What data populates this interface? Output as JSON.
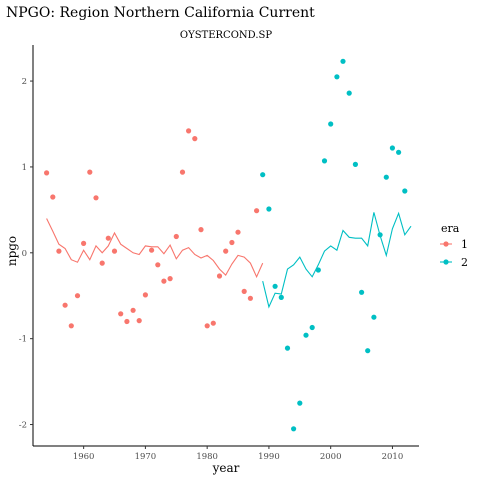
{
  "chart_data": {
    "type": "scatter",
    "title": "NPGO: Region Northern California Current",
    "subtitle": "OYSTERCOND.SP",
    "xlabel": "year",
    "ylabel": "npgo",
    "xlim": [
      1951.8,
      2014.3
    ],
    "ylim": [
      -2.25,
      2.42
    ],
    "x_ticks": [
      1960,
      1970,
      1980,
      1990,
      2000,
      2010
    ],
    "y_ticks": [
      -2,
      -1,
      0,
      1,
      2
    ],
    "grid": false,
    "legend_title": "era",
    "legend_position": "right",
    "series": [
      {
        "name": "1",
        "color": "#f8766d",
        "points": [
          [
            1954,
            0.93
          ],
          [
            1955,
            0.65
          ],
          [
            1956,
            0.02
          ],
          [
            1957,
            -0.61
          ],
          [
            1958,
            -0.85
          ],
          [
            1959,
            -0.5
          ],
          [
            1960,
            0.11
          ],
          [
            1961,
            0.94
          ],
          [
            1962,
            0.64
          ],
          [
            1963,
            -0.12
          ],
          [
            1964,
            0.17
          ],
          [
            1965,
            0.02
          ],
          [
            1966,
            -0.71
          ],
          [
            1967,
            -0.8
          ],
          [
            1968,
            -0.67
          ],
          [
            1969,
            -0.79
          ],
          [
            1970,
            -0.49
          ],
          [
            1971,
            0.03
          ],
          [
            1972,
            -0.14
          ],
          [
            1973,
            -0.33
          ],
          [
            1974,
            -0.3
          ],
          [
            1975,
            0.19
          ],
          [
            1976,
            0.94
          ],
          [
            1977,
            1.42
          ],
          [
            1978,
            1.33
          ],
          [
            1979,
            0.27
          ],
          [
            1980,
            -0.85
          ],
          [
            1981,
            -0.82
          ],
          [
            1982,
            -0.27
          ],
          [
            1983,
            0.02
          ],
          [
            1984,
            0.12
          ],
          [
            1985,
            0.24
          ],
          [
            1986,
            -0.45
          ],
          [
            1987,
            -0.53
          ],
          [
            1988,
            0.49
          ]
        ],
        "trend": [
          [
            1954,
            0.4
          ],
          [
            1955,
            0.25
          ],
          [
            1956,
            0.1
          ],
          [
            1957,
            0.05
          ],
          [
            1958,
            -0.08
          ],
          [
            1959,
            -0.11
          ],
          [
            1960,
            0.03
          ],
          [
            1961,
            -0.08
          ],
          [
            1962,
            0.08
          ],
          [
            1963,
            0.0
          ],
          [
            1964,
            0.08
          ],
          [
            1965,
            0.23
          ],
          [
            1966,
            0.1
          ],
          [
            1967,
            0.05
          ],
          [
            1968,
            0.0
          ],
          [
            1969,
            -0.02
          ],
          [
            1970,
            0.08
          ],
          [
            1971,
            0.07
          ],
          [
            1972,
            0.07
          ],
          [
            1973,
            -0.01
          ],
          [
            1974,
            0.09
          ],
          [
            1975,
            -0.07
          ],
          [
            1976,
            0.03
          ],
          [
            1977,
            0.06
          ],
          [
            1978,
            -0.02
          ],
          [
            1979,
            -0.06
          ],
          [
            1980,
            -0.03
          ],
          [
            1981,
            -0.09
          ],
          [
            1982,
            -0.19
          ],
          [
            1983,
            -0.26
          ],
          [
            1984,
            -0.13
          ],
          [
            1985,
            -0.03
          ],
          [
            1986,
            -0.05
          ],
          [
            1987,
            -0.12
          ],
          [
            1988,
            -0.28
          ],
          [
            1989,
            -0.12
          ]
        ]
      },
      {
        "name": "2",
        "color": "#00bfc4",
        "points": [
          [
            1989,
            0.91
          ],
          [
            1990,
            0.51
          ],
          [
            1991,
            -0.39
          ],
          [
            1992,
            -0.52
          ],
          [
            1993,
            -1.11
          ],
          [
            1994,
            -2.05
          ],
          [
            1995,
            -1.75
          ],
          [
            1996,
            -0.96
          ],
          [
            1997,
            -0.87
          ],
          [
            1998,
            -0.2
          ],
          [
            1999,
            1.07
          ],
          [
            2000,
            1.5
          ],
          [
            2001,
            2.05
          ],
          [
            2002,
            2.23
          ],
          [
            2003,
            1.86
          ],
          [
            2004,
            1.03
          ],
          [
            2005,
            -0.46
          ],
          [
            2006,
            -1.14
          ],
          [
            2007,
            -0.75
          ],
          [
            2008,
            0.21
          ],
          [
            2009,
            0.88
          ],
          [
            2010,
            1.22
          ],
          [
            2011,
            1.17
          ],
          [
            2012,
            0.72
          ]
        ],
        "trend": [
          [
            1989,
            -0.33
          ],
          [
            1990,
            -0.63
          ],
          [
            1991,
            -0.47
          ],
          [
            1992,
            -0.48
          ],
          [
            1993,
            -0.19
          ],
          [
            1994,
            -0.14
          ],
          [
            1995,
            -0.05
          ],
          [
            1996,
            -0.19
          ],
          [
            1997,
            -0.28
          ],
          [
            1998,
            -0.14
          ],
          [
            1999,
            0.02
          ],
          [
            2000,
            0.08
          ],
          [
            2001,
            0.03
          ],
          [
            2002,
            0.26
          ],
          [
            2003,
            0.18
          ],
          [
            2004,
            0.17
          ],
          [
            2005,
            0.17
          ],
          [
            2006,
            0.08
          ],
          [
            2007,
            0.47
          ],
          [
            2008,
            0.2
          ],
          [
            2009,
            -0.03
          ],
          [
            2010,
            0.28
          ],
          [
            2011,
            0.46
          ],
          [
            2012,
            0.21
          ],
          [
            2013,
            0.31
          ]
        ]
      }
    ]
  }
}
